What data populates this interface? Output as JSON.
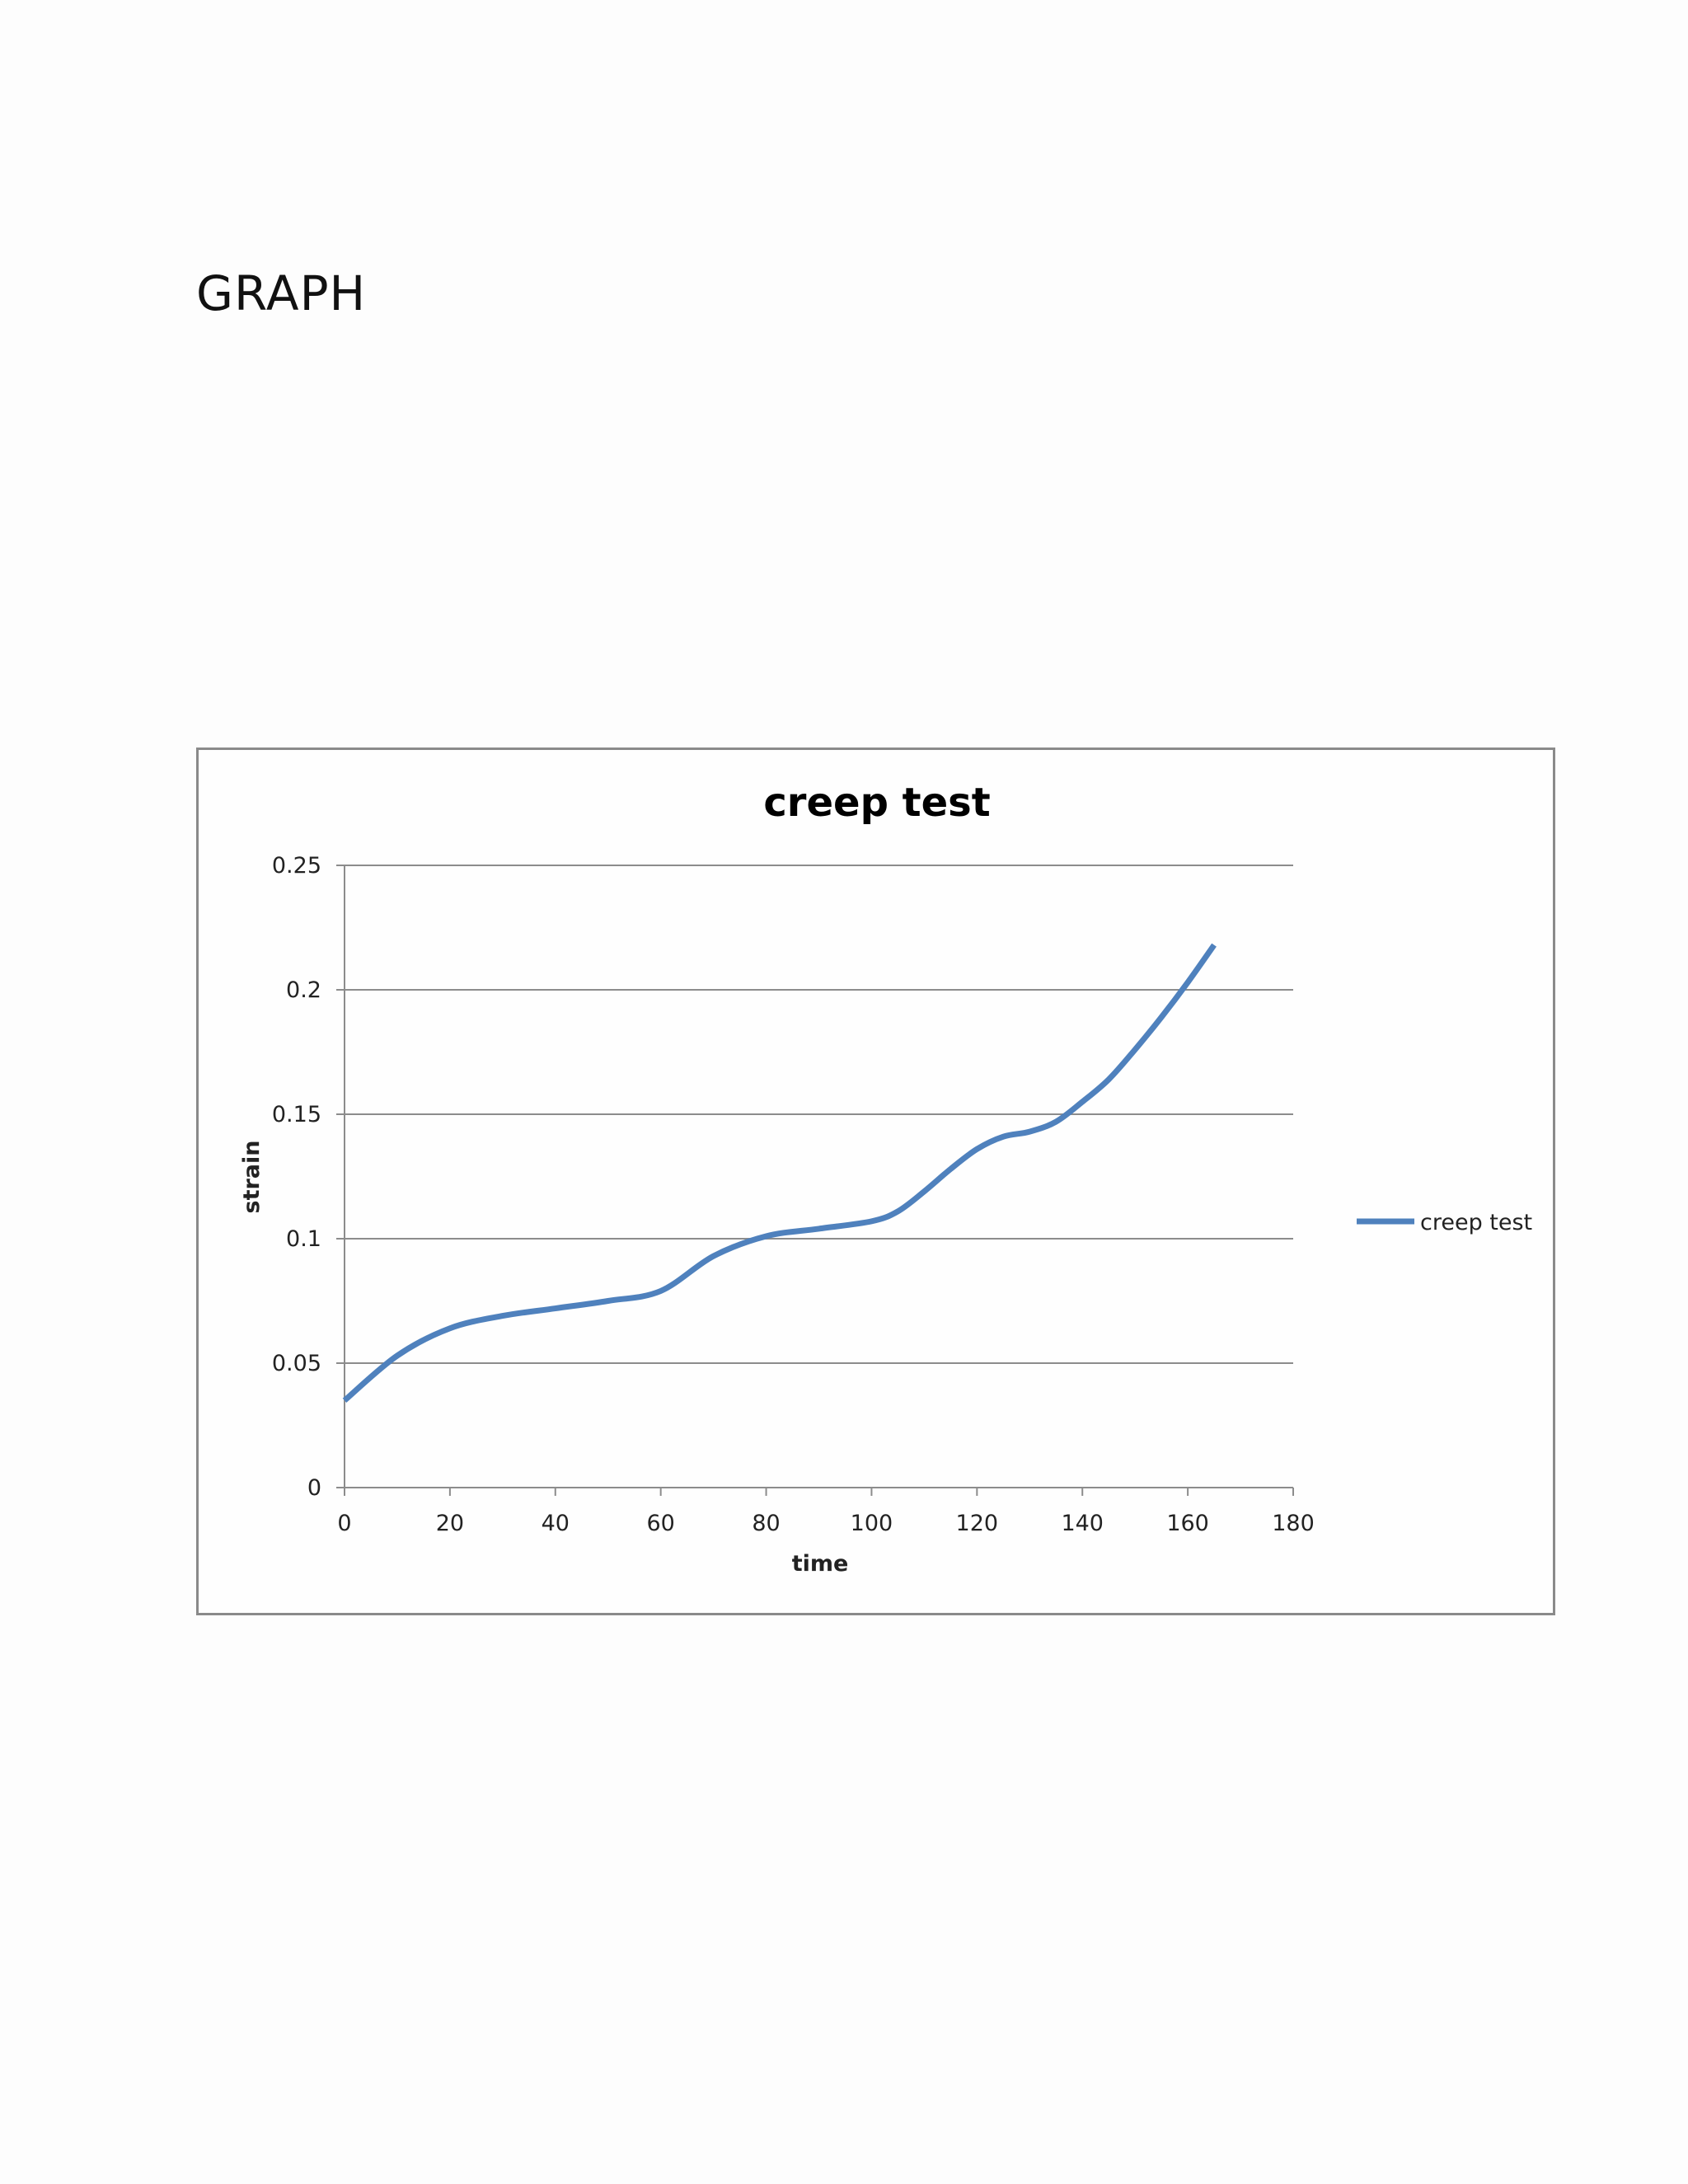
{
  "page": {
    "heading": "GRAPH"
  },
  "chart_data": {
    "type": "line",
    "title": "creep test",
    "xlabel": "time",
    "ylabel": "strain",
    "xlim": [
      0,
      180
    ],
    "ylim": [
      0,
      0.25
    ],
    "x_ticks": [
      "0",
      "20",
      "40",
      "60",
      "80",
      "100",
      "120",
      "140",
      "160",
      "180"
    ],
    "y_ticks": [
      "0",
      "0.05",
      "0.1",
      "0.15",
      "0.2",
      "0.25"
    ],
    "grid": "horizontal",
    "legend": "right",
    "series": [
      {
        "name": "creep test",
        "color": "#4f81bd",
        "x": [
          0,
          10,
          20,
          30,
          40,
          50,
          60,
          70,
          80,
          90,
          100,
          105,
          110,
          115,
          120,
          125,
          130,
          135,
          140,
          145,
          150,
          155,
          160,
          165
        ],
        "y": [
          0.035,
          0.053,
          0.064,
          0.069,
          0.072,
          0.075,
          0.079,
          0.093,
          0.101,
          0.104,
          0.107,
          0.111,
          0.119,
          0.128,
          0.136,
          0.141,
          0.143,
          0.147,
          0.155,
          0.164,
          0.176,
          0.189,
          0.203,
          0.218
        ]
      }
    ]
  }
}
